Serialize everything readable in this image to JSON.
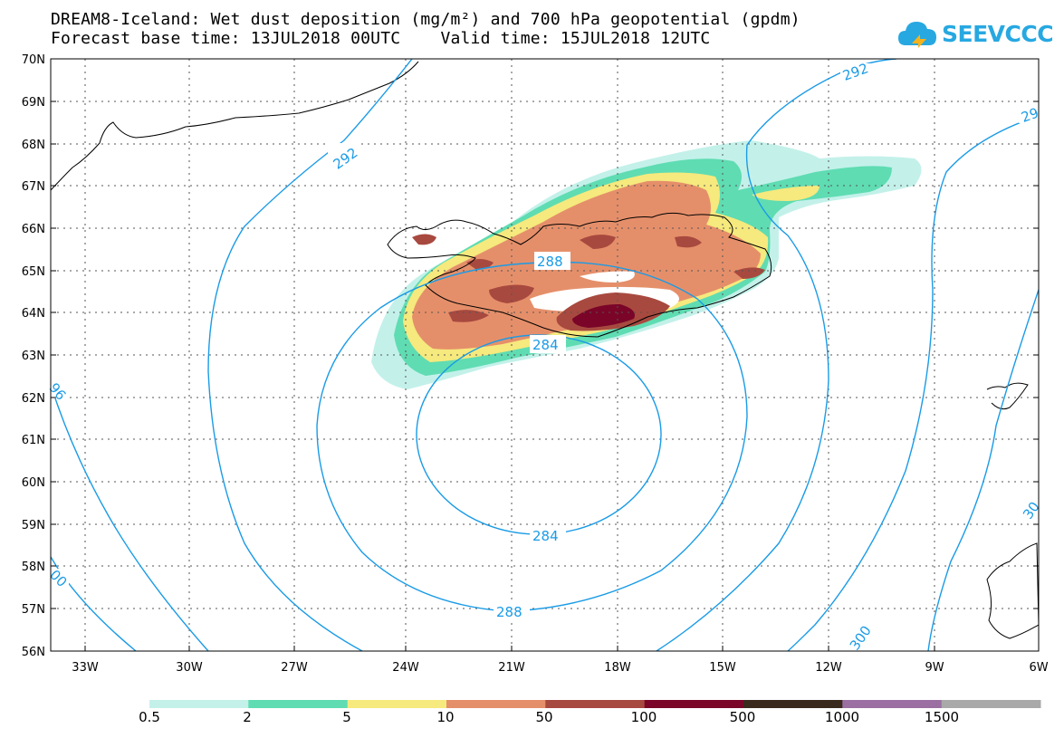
{
  "header": {
    "title_line1": "DREAM8-Iceland: Wet dust deposition (mg/m²) and 700 hPa geopotential (gpdm)",
    "title_line2": "Forecast base time: 13JUL2018 00UTC    Valid time: 15JUL2018 12UTC"
  },
  "logo": {
    "text": "SEEVCCC",
    "icon": "cloud-logo-icon",
    "color": "#27a8e1"
  },
  "map": {
    "lat_labels": [
      "70N",
      "69N",
      "68N",
      "67N",
      "66N",
      "65N",
      "64N",
      "63N",
      "62N",
      "61N",
      "60N",
      "59N",
      "58N",
      "57N",
      "56N"
    ],
    "lon_labels": [
      "33W",
      "30W",
      "27W",
      "24W",
      "21W",
      "18W",
      "15W",
      "12W",
      "9W",
      "6W"
    ],
    "contour_labels": [
      "292",
      "292",
      "29",
      "288",
      "284",
      "284",
      "288",
      "300",
      "30",
      "96",
      "00"
    ],
    "contour_color": "#1a9be6"
  },
  "legend": {
    "labels": [
      "0.5",
      "2",
      "5",
      "10",
      "50",
      "100",
      "500",
      "1000",
      "1500"
    ],
    "colors": [
      "#c3f1ea",
      "#5fdcb2",
      "#f6e97d",
      "#e58f6a",
      "#a8493f",
      "#7a0528",
      "#3a2a1e",
      "#9b6fa2",
      "#a9a9a9"
    ]
  }
}
